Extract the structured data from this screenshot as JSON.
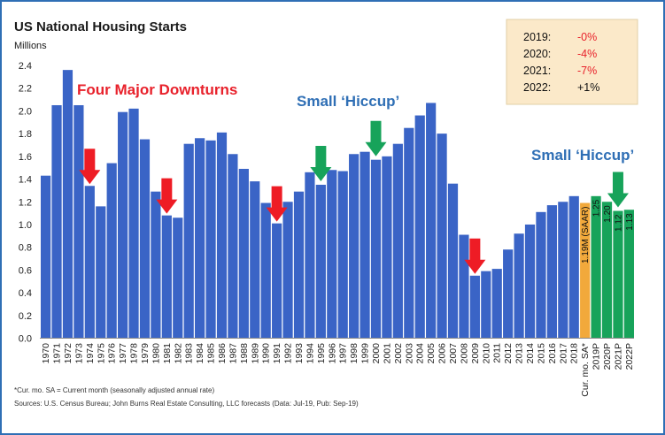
{
  "chart_data": {
    "type": "bar",
    "title": "US National Housing Starts",
    "ylabel": "Millions",
    "ylim": [
      0,
      2.4
    ],
    "yticks": [
      "0.0",
      "0.2",
      "0.4",
      "0.6",
      "0.8",
      "1.0",
      "1.2",
      "1.4",
      "1.6",
      "1.8",
      "2.0",
      "2.2",
      "2.4"
    ],
    "grid": false,
    "categories": [
      "1970",
      "1971",
      "1972",
      "1973",
      "1974",
      "1975",
      "1976",
      "1977",
      "1978",
      "1979",
      "1980",
      "1981",
      "1982",
      "1983",
      "1984",
      "1985",
      "1986",
      "1987",
      "1988",
      "1989",
      "1990",
      "1991",
      "1992",
      "1993",
      "1994",
      "1995",
      "1996",
      "1997",
      "1998",
      "1999",
      "2000",
      "2001",
      "2002",
      "2003",
      "2004",
      "2005",
      "2006",
      "2007",
      "2008",
      "2009",
      "2010",
      "2011",
      "2012",
      "2013",
      "2014",
      "2015",
      "2016",
      "2017",
      "2018",
      "Cur. mo. SA*",
      "2019P",
      "2020P",
      "2021P",
      "2022P"
    ],
    "values": [
      1.43,
      2.05,
      2.36,
      2.05,
      1.34,
      1.16,
      1.54,
      1.99,
      2.02,
      1.75,
      1.29,
      1.08,
      1.06,
      1.71,
      1.76,
      1.74,
      1.81,
      1.62,
      1.49,
      1.38,
      1.19,
      1.01,
      1.2,
      1.29,
      1.46,
      1.35,
      1.48,
      1.47,
      1.62,
      1.64,
      1.57,
      1.6,
      1.71,
      1.85,
      1.96,
      2.07,
      1.8,
      1.36,
      0.91,
      0.55,
      0.59,
      0.61,
      0.78,
      0.92,
      1.0,
      1.11,
      1.17,
      1.2,
      1.25,
      1.19,
      1.25,
      1.2,
      1.12,
      1.13
    ],
    "bar_colors": {
      "historical": "#3a64c6",
      "current": "#f2a93b",
      "forecast": "#17a35a"
    },
    "bar_labels": [
      {
        "index": 49,
        "text": "1.19M (SAAR)"
      },
      {
        "index": 50,
        "text": "1.25"
      },
      {
        "index": 51,
        "text": "1.20"
      },
      {
        "index": 52,
        "text": "1.12"
      },
      {
        "index": 53,
        "text": "1.13"
      }
    ],
    "annotations": {
      "downturns_label": "Four Major Downturns",
      "hiccup_label_1": "Small ‘Hiccup’",
      "hiccup_label_2": "Small ‘Hiccup’",
      "red_arrow_indices": [
        4,
        11,
        21,
        39
      ],
      "green_arrow_indices": [
        25,
        30,
        52
      ]
    },
    "legend_box": {
      "rows": [
        {
          "year": "2019:",
          "change": "-0%",
          "color": "#e8212b"
        },
        {
          "year": "2020:",
          "change": "-4%",
          "color": "#e8212b"
        },
        {
          "year": "2021:",
          "change": "-7%",
          "color": "#e8212b"
        },
        {
          "year": "2022:",
          "change": "+1%",
          "color": "#111111"
        }
      ],
      "placement": "top-right",
      "background": "#fbe9c9"
    },
    "footnote": "*Cur. mo. SA = Current month (seasonally adjusted annual rate)",
    "source": "Sources: U.S. Census Bureau; John Burns Real Estate Consulting, LLC forecasts (Data: Jul-19, Pub: Sep-19)"
  }
}
